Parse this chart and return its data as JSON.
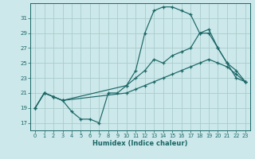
{
  "background_color": "#cce8ea",
  "grid_color": "#aacccc",
  "line_color": "#1a6666",
  "xlabel": "Humidex (Indice chaleur)",
  "xlim": [
    -0.5,
    23.5
  ],
  "ylim": [
    16,
    33
  ],
  "yticks": [
    17,
    19,
    21,
    23,
    25,
    27,
    29,
    31
  ],
  "xticks": [
    0,
    1,
    2,
    3,
    4,
    5,
    6,
    7,
    8,
    9,
    10,
    11,
    12,
    13,
    14,
    15,
    16,
    17,
    18,
    19,
    20,
    21,
    22,
    23
  ],
  "line1_x": [
    0,
    1,
    2,
    3,
    4,
    5,
    6,
    7,
    8,
    9,
    10,
    11,
    12,
    13,
    14,
    15,
    16,
    17,
    18,
    19,
    20,
    21,
    22,
    23
  ],
  "line1_y": [
    19,
    21,
    20.5,
    20,
    18.5,
    17.5,
    17.5,
    17,
    21,
    21,
    22,
    24,
    29,
    32,
    32.5,
    32.5,
    32,
    31.5,
    29,
    29,
    27,
    25,
    23,
    22.5
  ],
  "line2_x": [
    0,
    1,
    2,
    3,
    10,
    11,
    12,
    13,
    14,
    15,
    16,
    17,
    18,
    19,
    20,
    21,
    22,
    23
  ],
  "line2_y": [
    19,
    21,
    20.5,
    20,
    22,
    23,
    24,
    25.5,
    25,
    26,
    26.5,
    27,
    29,
    29.5,
    27,
    25,
    24,
    22.5
  ],
  "line3_x": [
    0,
    1,
    2,
    3,
    10,
    11,
    12,
    13,
    14,
    15,
    16,
    17,
    18,
    19,
    20,
    21,
    22,
    23
  ],
  "line3_y": [
    19,
    21,
    20.5,
    20,
    21,
    21.5,
    22,
    22.5,
    23,
    23.5,
    24,
    24.5,
    25,
    25.5,
    25,
    24.5,
    23.5,
    22.5
  ]
}
